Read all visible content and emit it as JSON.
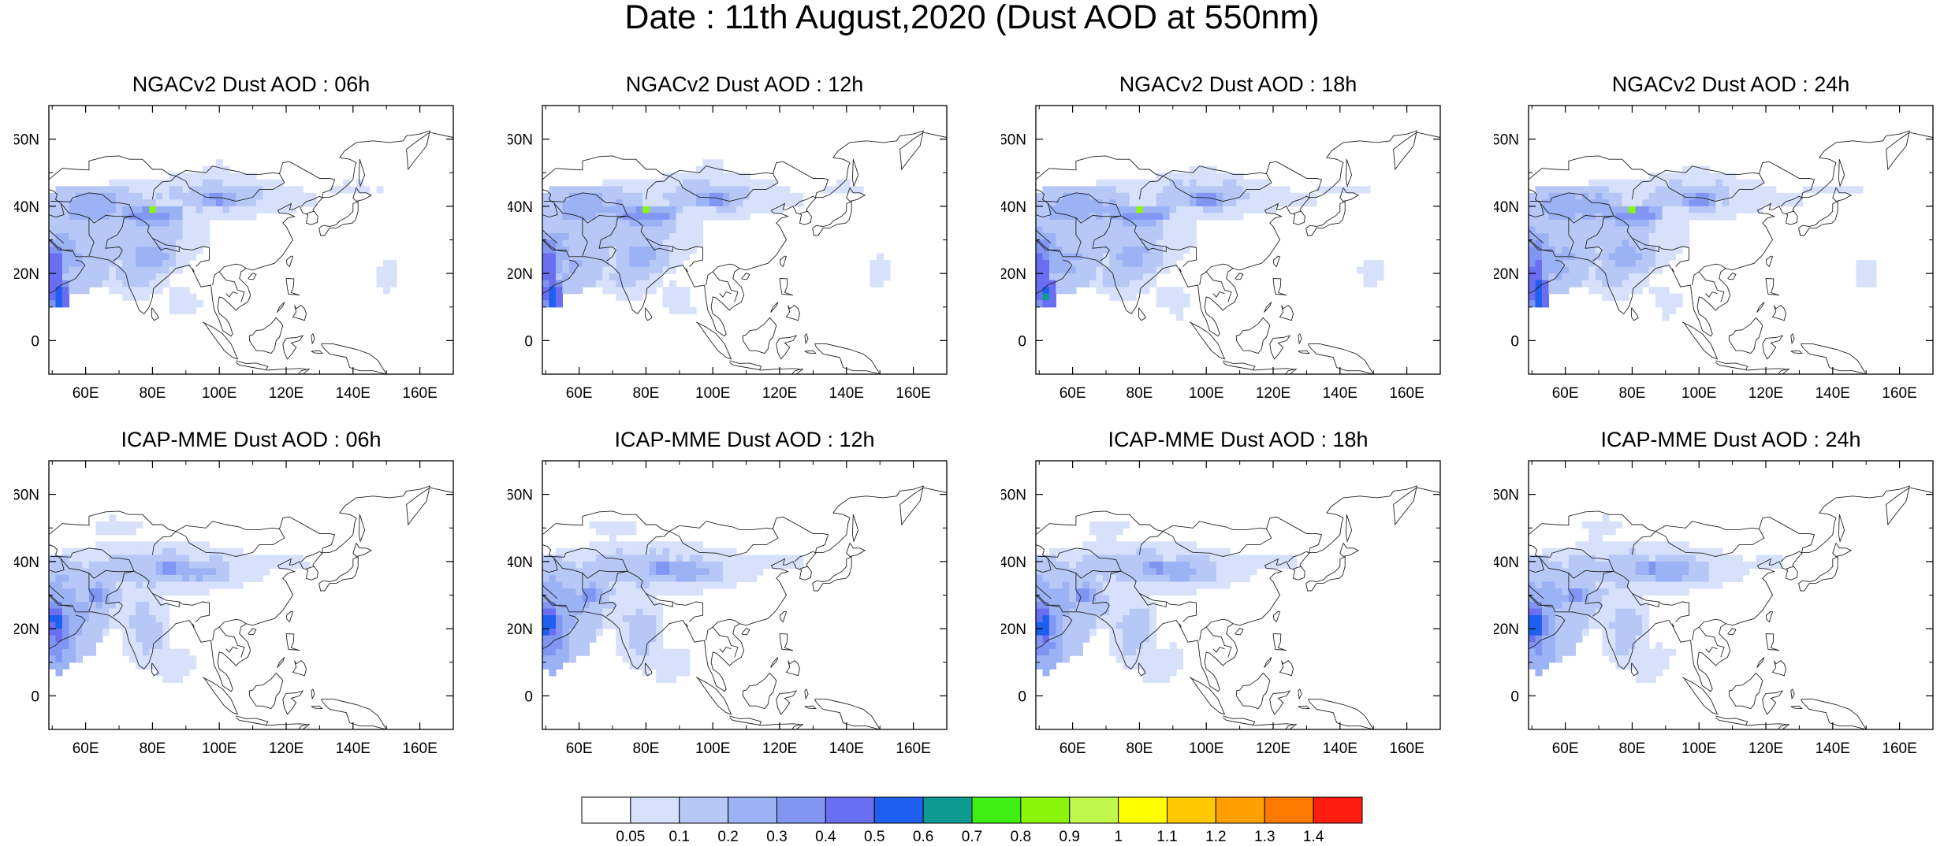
{
  "title": "Date : 11th August,2020 (Dust AOD at 550nm)",
  "chart_data": {
    "type": "heatmap",
    "axes": {
      "x_ticks": [
        "60E",
        "80E",
        "100E",
        "120E",
        "140E",
        "160E"
      ],
      "x_tick_values": [
        60,
        80,
        100,
        120,
        140,
        160
      ],
      "y_ticks": [
        "60N",
        "40N",
        "20N",
        "0"
      ],
      "y_tick_values": [
        60,
        40,
        20,
        0
      ],
      "xlim": [
        49,
        170
      ],
      "ylim": [
        -10,
        70
      ]
    },
    "panels": [
      {
        "title": "NGACv2 Dust AOD : 06h",
        "model": "NGACv2",
        "lead": "06h"
      },
      {
        "title": "NGACv2 Dust AOD : 12h",
        "model": "NGACv2",
        "lead": "12h"
      },
      {
        "title": "NGACv2 Dust AOD : 18h",
        "model": "NGACv2",
        "lead": "18h"
      },
      {
        "title": "NGACv2 Dust AOD : 24h",
        "model": "NGACv2",
        "lead": "24h"
      },
      {
        "title": "ICAP-MME Dust AOD : 06h",
        "model": "ICAP-MME",
        "lead": "06h"
      },
      {
        "title": "ICAP-MME Dust AOD : 12h",
        "model": "ICAP-MME",
        "lead": "12h"
      },
      {
        "title": "ICAP-MME Dust AOD : 18h",
        "model": "ICAP-MME",
        "lead": "18h"
      },
      {
        "title": "ICAP-MME Dust AOD : 24h",
        "model": "ICAP-MME",
        "lead": "24h"
      }
    ],
    "colorbar": {
      "labels": [
        "0.05",
        "0.1",
        "0.2",
        "0.3",
        "0.4",
        "0.5",
        "0.6",
        "0.7",
        "0.8",
        "0.9",
        "1",
        "1.1",
        "1.2",
        "1.3",
        "1.4"
      ],
      "colors": [
        "#ffffff",
        "#d7e1fb",
        "#b7c8f7",
        "#9bb3f5",
        "#8196f3",
        "#6a6ef0",
        "#1f5ff0",
        "#0c9a93",
        "#3fee12",
        "#8cf50c",
        "#c2f74b",
        "#ffff00",
        "#ffc800",
        "#ffa000",
        "#ff7a00",
        "#ff1c10"
      ]
    }
  }
}
